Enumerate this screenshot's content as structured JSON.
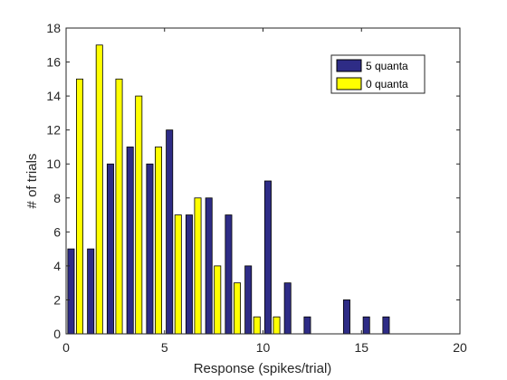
{
  "chart_data": {
    "type": "bar",
    "title": "",
    "xlabel": "Response (spikes/trial)",
    "ylabel": "# of trials",
    "xlim": [
      0,
      20
    ],
    "ylim": [
      0,
      18
    ],
    "xticks": [
      0,
      5,
      10,
      15,
      20
    ],
    "yticks": [
      0,
      2,
      4,
      6,
      8,
      10,
      12,
      14,
      16,
      18
    ],
    "grid": false,
    "legend_position": "top-right",
    "x": [
      0,
      1,
      2,
      3,
      4,
      5,
      6,
      7,
      8,
      9,
      10,
      11,
      12,
      13,
      14,
      15,
      16
    ],
    "series": [
      {
        "name": "5 quanta",
        "color": "#2e2c86",
        "values": [
          5,
          5,
          10,
          11,
          10,
          12,
          7,
          8,
          7,
          4,
          9,
          3,
          1,
          0,
          2,
          1,
          1
        ]
      },
      {
        "name": "0 quanta",
        "color": "#ffff00",
        "values": [
          15,
          17,
          15,
          14,
          11,
          7,
          8,
          4,
          3,
          1,
          1,
          0,
          0,
          0,
          0,
          0,
          0
        ]
      }
    ]
  }
}
